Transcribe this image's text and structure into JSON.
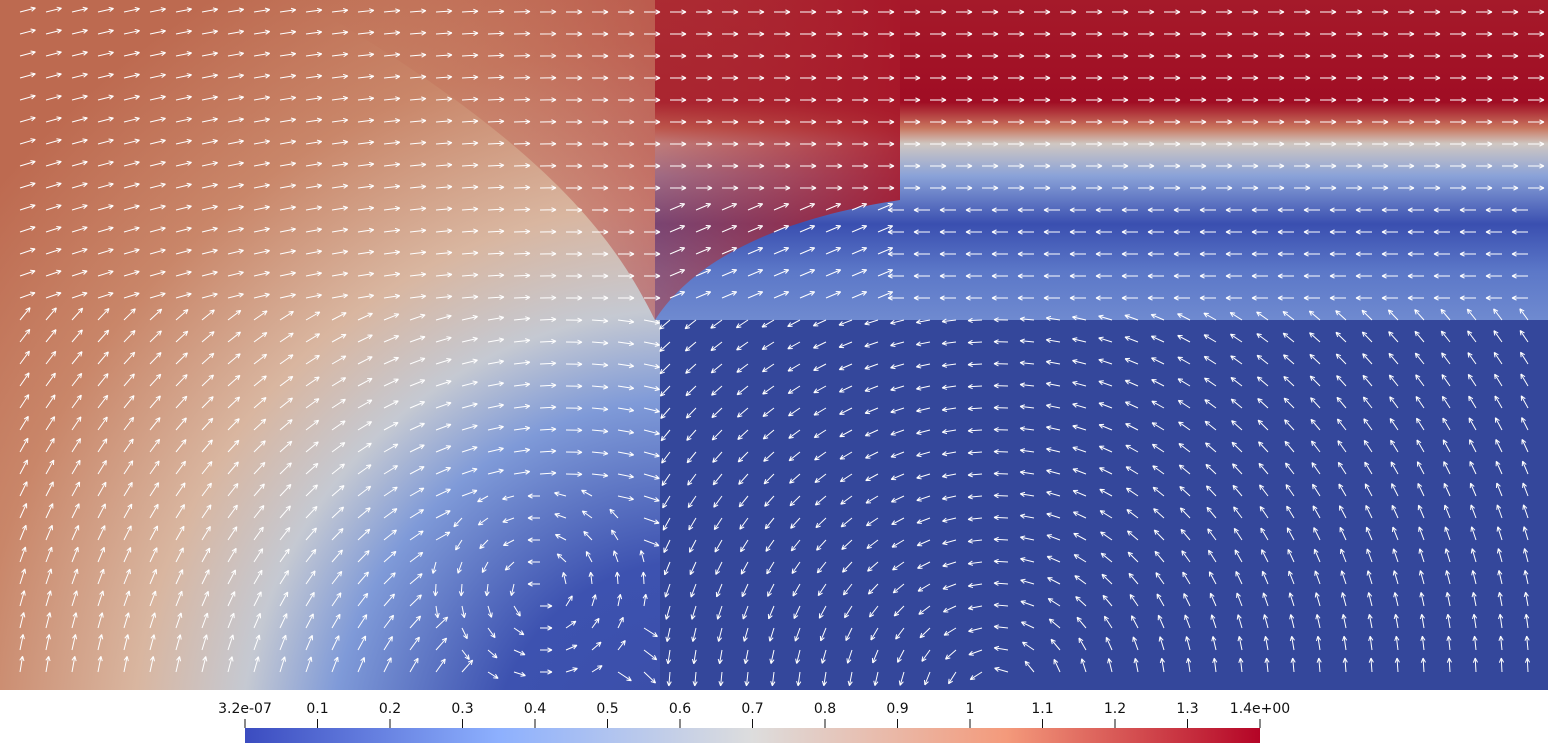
{
  "colorbar": {
    "range": [
      3.2e-07,
      1.4
    ],
    "ticks": [
      {
        "value": 3.2e-07,
        "label": "3.2e-07"
      },
      0.1,
      0.2,
      0.3,
      0.4,
      0.5,
      0.6,
      0.7,
      0.8,
      0.9,
      1,
      1.1,
      1.2,
      1.3,
      {
        "value": 1.4,
        "label": "1.4e+00"
      }
    ]
  }
}
